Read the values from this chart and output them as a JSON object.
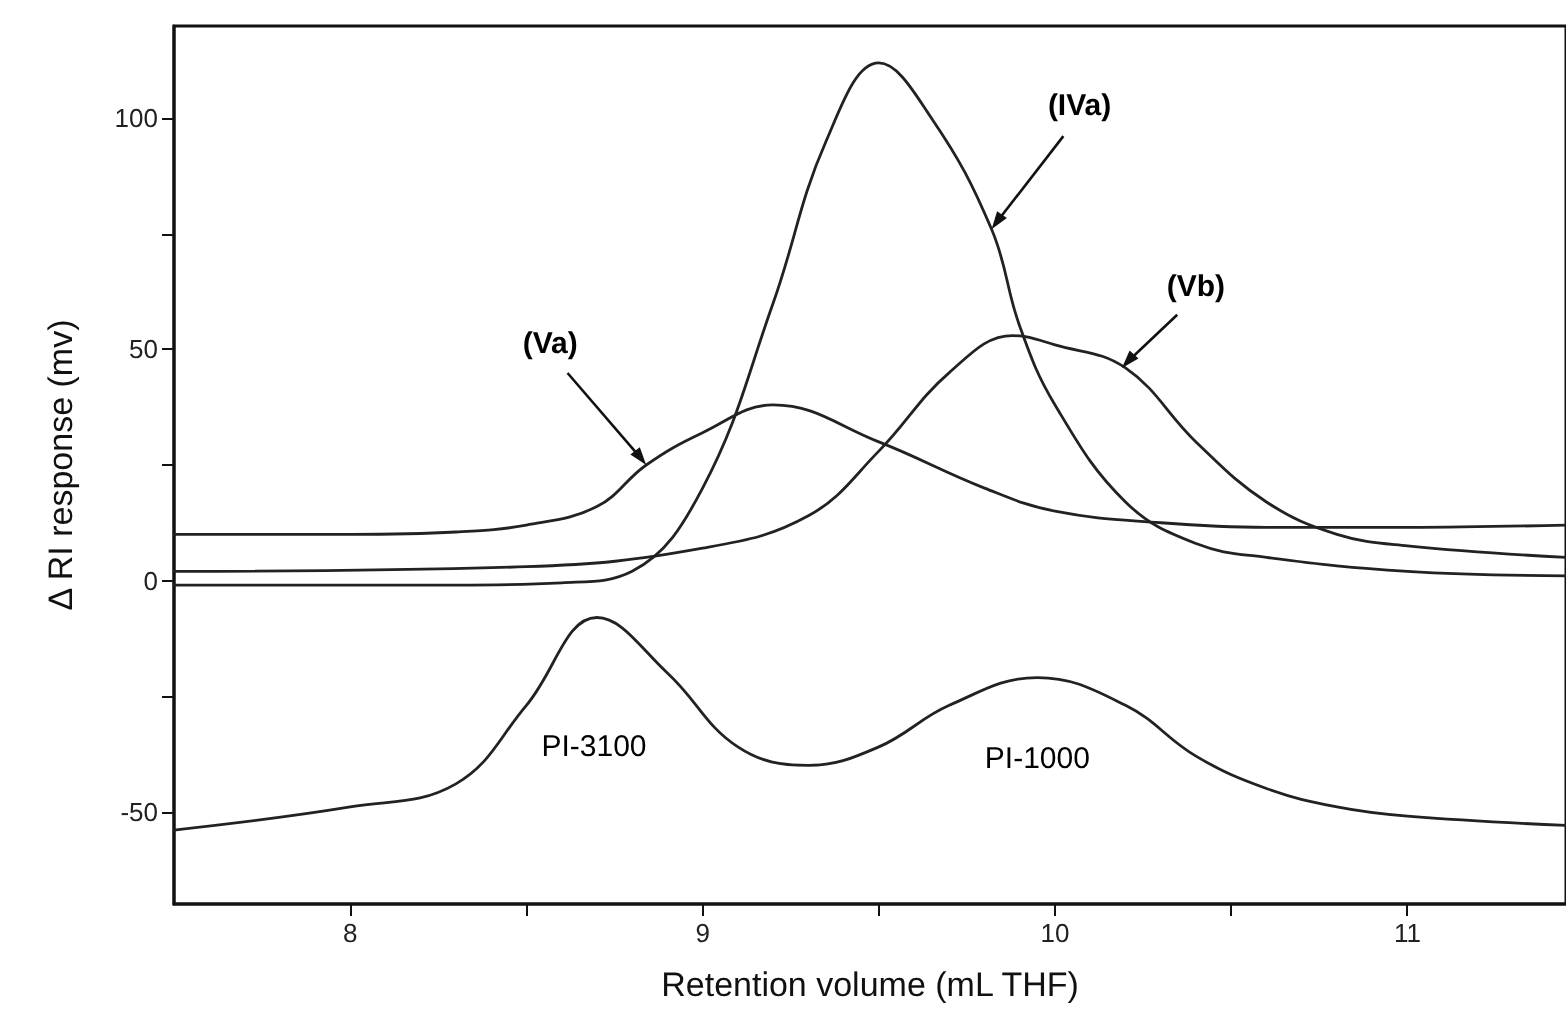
{
  "chart_data": {
    "type": "line",
    "xlabel": "Retention volume (mL THF)",
    "ylabel": "Δ RI response (mv)",
    "xlim": [
      7.5,
      11.45
    ],
    "xticks": [
      8,
      {
        "value": 8.5,
        "label": null
      },
      9,
      {
        "value": 9.5,
        "label": null
      },
      10,
      {
        "value": 10.5,
        "label": null
      },
      11
    ],
    "ylim": [
      -70,
      120
    ],
    "yticks": [
      -50,
      {
        "value": -25,
        "label": null
      },
      0,
      {
        "value": 25,
        "label": null
      },
      50,
      {
        "value": 75,
        "label": null
      },
      100
    ],
    "grid": false,
    "marker": "none",
    "line_style": "solid",
    "series": [
      {
        "color": "#222222",
        "x": [
          7.5,
          8.0,
          8.3,
          8.5,
          8.7,
          8.84,
          9.0,
          9.2,
          9.5,
          9.8,
          10.0,
          10.3,
          10.6,
          11.0,
          11.45
        ],
        "values": [
          10,
          10,
          10.5,
          12,
          16,
          25,
          32,
          38,
          30,
          20,
          15,
          12.5,
          11.5,
          11.5,
          12
        ]
      },
      {
        "color": "#222222",
        "x": [
          7.5,
          8.3,
          8.6,
          8.8,
          9.0,
          9.2,
          9.35,
          9.5,
          9.65,
          9.82,
          9.9,
          10.0,
          10.2,
          10.4,
          10.6,
          11.0,
          11.45
        ],
        "values": [
          -1,
          -1,
          -0.5,
          2,
          20,
          60,
          95,
          112,
          100,
          76,
          55,
          38,
          17,
          8,
          5,
          2,
          1
        ]
      },
      {
        "color": "#222222",
        "x": [
          7.5,
          8.5,
          9.0,
          9.3,
          9.5,
          9.7,
          9.88,
          10.0,
          10.2,
          10.4,
          10.6,
          10.8,
          11.0,
          11.45
        ],
        "values": [
          2,
          3,
          7,
          14,
          28,
          45,
          53,
          51,
          46,
          30,
          17,
          10,
          7.5,
          5
        ]
      },
      {
        "color": "#222222",
        "x": [
          7.5,
          8.0,
          8.3,
          8.5,
          8.7,
          8.9,
          9.1,
          9.3,
          9.5,
          9.7,
          9.95,
          10.2,
          10.4,
          10.6,
          10.8,
          11.0,
          11.45
        ],
        "values": [
          -54,
          -49,
          -44,
          -27,
          -8,
          -20,
          -36,
          -40,
          -36,
          -27,
          -21,
          -27,
          -38,
          -45,
          -49,
          -51,
          -53
        ]
      }
    ],
    "annotations": [
      {
        "text": "(Va)",
        "x": 8.84,
        "y": 25
      },
      {
        "text": "(IVa)",
        "x": 9.82,
        "y": 76
      },
      {
        "text": "(Vb)",
        "x": 10.19,
        "y": 46
      },
      "PI-3100",
      {
        "text": "PI-1000",
        "x": 9.95,
        "y": -21
      }
    ]
  }
}
